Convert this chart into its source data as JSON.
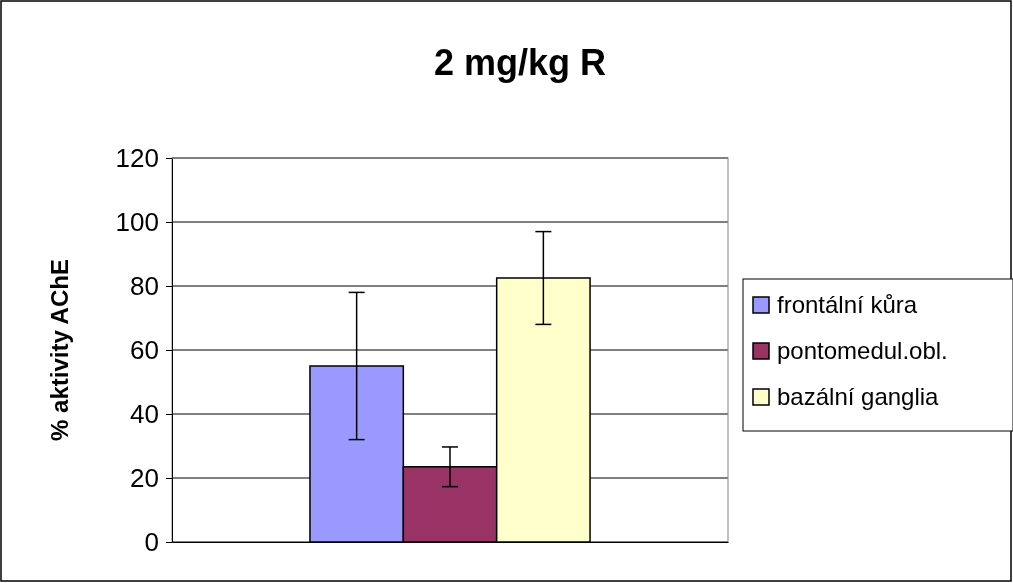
{
  "chart_data": {
    "type": "bar",
    "title": "2 mg/kg R",
    "ylabel": "% aktivity AChE",
    "categories": [
      null
    ],
    "series": [
      {
        "name": "frontální kůra",
        "color": "#9999ff",
        "values": [
          55
        ],
        "errors": [
          23
        ]
      },
      {
        "name": "pontomedul.obl.",
        "color": "#993366",
        "values": [
          23.5
        ],
        "errors": [
          6.2
        ]
      },
      {
        "name": "bazální ganglia",
        "color": "#ffffcc",
        "values": [
          82.5
        ],
        "errors": [
          14.5
        ]
      }
    ],
    "ylim": [
      0,
      120
    ],
    "yticks": [
      0,
      20,
      40,
      60,
      80,
      100,
      120
    ],
    "grid": "y",
    "legend": "right"
  }
}
